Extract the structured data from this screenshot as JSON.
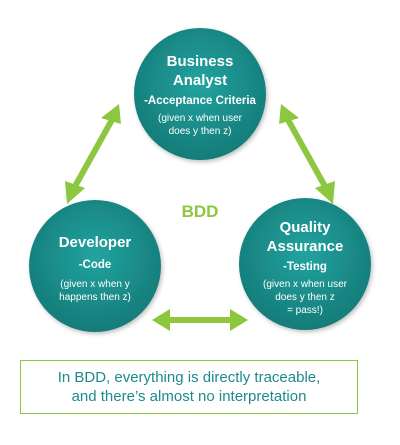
{
  "colors": {
    "circle_fill": "#1a8f8c",
    "circle_edge": "#137873",
    "arrow": "#8dc63f",
    "bdd_label": "#8dc63f",
    "caption_text": "#1e8a8c",
    "caption_border": "#8dc63f"
  },
  "center_label": "BDD",
  "nodes": {
    "business_analyst": {
      "title_lines": [
        "Business",
        "Analyst"
      ],
      "subtitle": "-Acceptance Criteria",
      "detail_lines": [
        "(given x when user",
        "does y then z)"
      ]
    },
    "developer": {
      "title_lines": [
        "Developer"
      ],
      "subtitle": "-Code",
      "detail_lines": [
        "(given x when y",
        "happens then z)"
      ]
    },
    "quality_assurance": {
      "title_lines": [
        "Quality",
        "Assurance"
      ],
      "subtitle": "-Testing",
      "detail_lines": [
        "(given x when user",
        "does y then z",
        "= pass!)"
      ]
    }
  },
  "caption": {
    "line1": "In BDD, everything is directly traceable,",
    "line2": "and there’s almost no interpretation"
  }
}
